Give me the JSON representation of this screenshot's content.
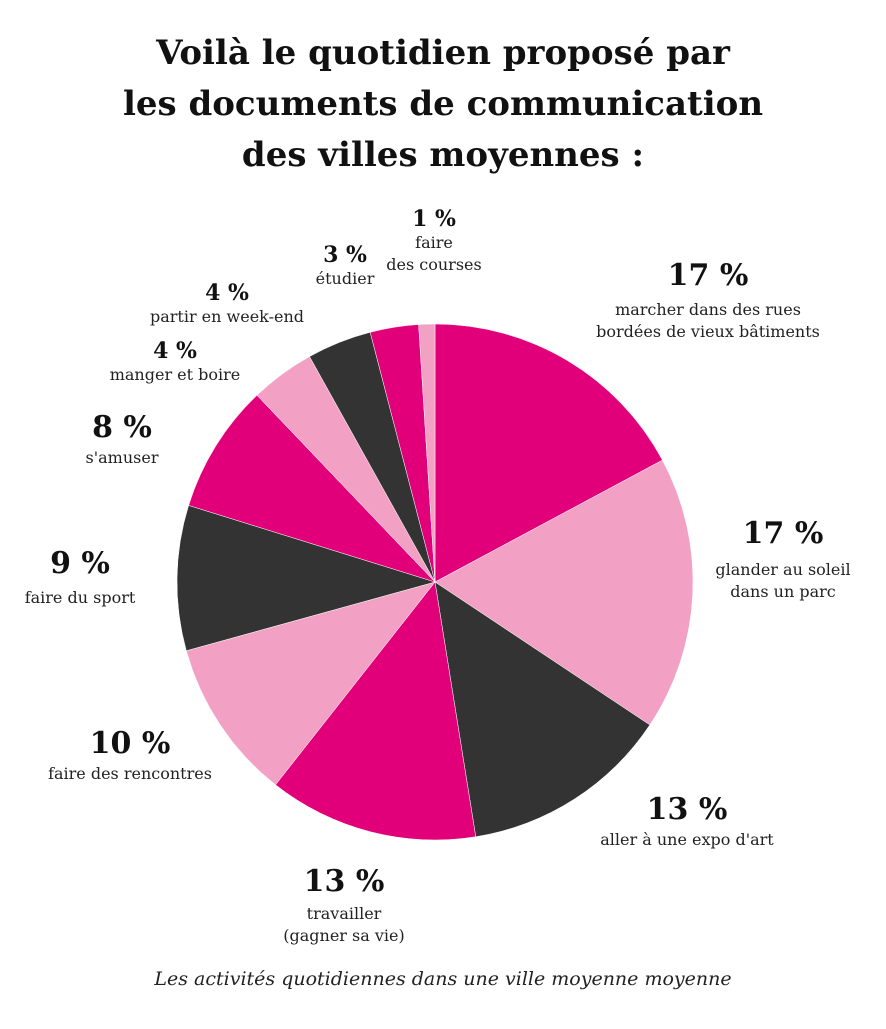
{
  "title": {
    "line1": "Voilà le quotidien proposé par",
    "line2": "les documents de communication",
    "line3": "des villes moyennes :"
  },
  "caption": "Les activités quotidiennes dans une ville moyenne moyenne",
  "colors": {
    "magenta": "#e2007a",
    "pink": "#f2a0c4",
    "dark": "#333333"
  },
  "chart_data": {
    "type": "pie",
    "title": "Voilà le quotidien proposé par les documents de communication des villes moyennes :",
    "slices": [
      {
        "value": 17,
        "pct_label": "17 %",
        "label_lines": [
          "marcher dans des rues",
          "bordées de vieux bâtiments"
        ],
        "color": "#e2007a"
      },
      {
        "value": 17,
        "pct_label": "17 %",
        "label_lines": [
          "glander au soleil",
          "dans un parc"
        ],
        "color": "#f2a0c4"
      },
      {
        "value": 13,
        "pct_label": "13 %",
        "label_lines": [
          "aller à une expo d'art"
        ],
        "color": "#333333"
      },
      {
        "value": 13,
        "pct_label": "13 %",
        "label_lines": [
          "travailler",
          "(gagner sa vie)"
        ],
        "color": "#e2007a"
      },
      {
        "value": 10,
        "pct_label": "10 %",
        "label_lines": [
          "faire des rencontres"
        ],
        "color": "#f2a0c4"
      },
      {
        "value": 9,
        "pct_label": "9 %",
        "label_lines": [
          "faire du sport"
        ],
        "color": "#333333"
      },
      {
        "value": 8,
        "pct_label": "8 %",
        "label_lines": [
          "s'amuser"
        ],
        "color": "#e2007a"
      },
      {
        "value": 4,
        "pct_label": "4 %",
        "label_lines": [
          "manger et boire"
        ],
        "color": "#f2a0c4"
      },
      {
        "value": 4,
        "pct_label": "4 %",
        "label_lines": [
          "partir en week-end"
        ],
        "color": "#333333"
      },
      {
        "value": 3,
        "pct_label": "3 %",
        "label_lines": [
          "étudier"
        ],
        "color": "#e2007a"
      },
      {
        "value": 1,
        "pct_label": "1 %",
        "label_lines": [
          "faire",
          "des courses"
        ],
        "color": "#f2a0c4"
      }
    ]
  }
}
